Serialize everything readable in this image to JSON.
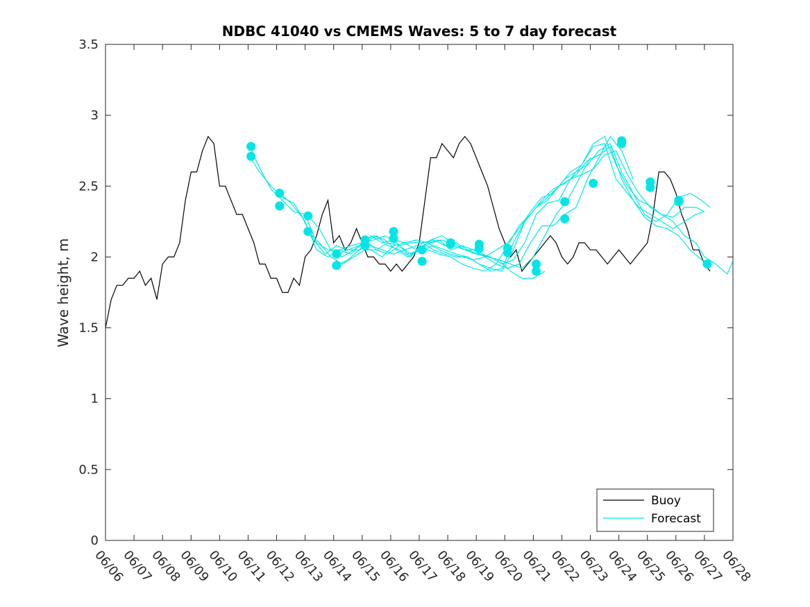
{
  "chart_data": {
    "type": "line",
    "title": "NDBC 41040 vs CMEMS Waves: 5 to 7 day forecast",
    "xlabel": "",
    "ylabel": "Wave height, m",
    "xlim": [
      "06/06",
      "06/28"
    ],
    "ylim": [
      0,
      3.5
    ],
    "x_ticks": [
      "06/06",
      "06/07",
      "06/08",
      "06/09",
      "06/10",
      "06/11",
      "06/12",
      "06/13",
      "06/14",
      "06/15",
      "06/16",
      "06/17",
      "06/18",
      "06/19",
      "06/20",
      "06/21",
      "06/22",
      "06/23",
      "06/24",
      "06/25",
      "06/26",
      "06/27",
      "06/28"
    ],
    "y_ticks": [
      "0",
      "0.5",
      "1",
      "1.5",
      "2",
      "2.5",
      "3",
      "3.5"
    ],
    "grid": false,
    "legend_position": "bottom-right",
    "colors": {
      "Buoy": "#000000",
      "Forecast": "#00e6e6"
    },
    "series": [
      {
        "name": "Buoy",
        "x_day": [
          0,
          0.1,
          0.2,
          0.4,
          0.6,
          0.8,
          1.0,
          1.2,
          1.4,
          1.6,
          1.8,
          2.0,
          2.2,
          2.4,
          2.6,
          2.8,
          3.0,
          3.2,
          3.4,
          3.6,
          3.8,
          4.0,
          4.2,
          4.4,
          4.6,
          4.8,
          5.0,
          5.2,
          5.4,
          5.6,
          5.8,
          6.0,
          6.2,
          6.4,
          6.6,
          6.8,
          7.0,
          7.2,
          7.4,
          7.6,
          7.8,
          8.0,
          8.2,
          8.4,
          8.6,
          8.8,
          9.0,
          9.2,
          9.4,
          9.6,
          9.8,
          10.0,
          10.2,
          10.4,
          10.6,
          10.8,
          11.0,
          11.2,
          11.4,
          11.6,
          11.8,
          12.0,
          12.2,
          12.4,
          12.6,
          12.8,
          13.0,
          13.2,
          13.4,
          13.6,
          13.8,
          14.0,
          14.2,
          14.4,
          14.6,
          14.8,
          15.0,
          15.2,
          15.4,
          15.6,
          15.8,
          16.0,
          16.2,
          16.4,
          16.6,
          16.8,
          17.0,
          17.2,
          17.4,
          17.6,
          17.8,
          18.0,
          18.2,
          18.4,
          18.6,
          18.8,
          19.0,
          19.2,
          19.4,
          19.6,
          19.8,
          20.0,
          20.2,
          20.4,
          20.6,
          20.8,
          21.0,
          21.2
        ],
        "values": [
          1.5,
          1.6,
          1.7,
          1.8,
          1.8,
          1.85,
          1.85,
          1.9,
          1.8,
          1.85,
          1.7,
          1.95,
          2.0,
          2.0,
          2.1,
          2.4,
          2.6,
          2.6,
          2.75,
          2.85,
          2.8,
          2.5,
          2.5,
          2.4,
          2.3,
          2.3,
          2.2,
          2.1,
          1.95,
          1.95,
          1.85,
          1.85,
          1.75,
          1.75,
          1.85,
          1.8,
          2.0,
          2.05,
          2.15,
          2.3,
          2.4,
          2.1,
          2.15,
          2.05,
          2.1,
          2.2,
          2.1,
          2.0,
          2.0,
          1.95,
          1.95,
          1.9,
          1.95,
          1.9,
          1.95,
          2.0,
          2.1,
          2.4,
          2.7,
          2.7,
          2.8,
          2.75,
          2.7,
          2.8,
          2.85,
          2.8,
          2.7,
          2.6,
          2.5,
          2.35,
          2.2,
          2.1,
          2.0,
          2.05,
          1.9,
          1.95,
          2.0,
          2.05,
          2.1,
          2.15,
          2.1,
          2.0,
          1.95,
          2.0,
          2.1,
          2.1,
          2.05,
          2.05,
          2.0,
          1.95,
          2.0,
          2.05,
          2.0,
          1.95,
          2.0,
          2.05,
          2.1,
          2.3,
          2.6,
          2.6,
          2.55,
          2.45,
          2.3,
          2.2,
          2.05,
          2.05,
          1.95,
          1.9
        ]
      },
      {
        "name": "Forecast",
        "runs": [
          {
            "x_day": [
              5.05,
              5.4,
              5.8,
              6.2,
              6.6,
              7.0,
              7.4,
              7.8,
              8.2,
              8.6,
              9.0,
              9.4,
              9.8,
              10.2,
              10.6,
              11.0,
              11.4,
              11.8,
              12.2,
              12.6,
              13.0,
              13.4,
              13.8,
              14.2,
              14.6,
              15.0,
              15.4
            ],
            "values": [
              2.78,
              2.63,
              2.48,
              2.4,
              2.32,
              2.3,
              2.1,
              2.05,
              2.05,
              2.02,
              2.1,
              2.15,
              2.12,
              2.05,
              2.0,
              2.05,
              2.1,
              2.12,
              2.08,
              2.05,
              2.05,
              2.0,
              1.98,
              1.9,
              1.85,
              1.85,
              1.9
            ]
          },
          {
            "x_day": [
              5.05,
              5.4,
              5.8,
              6.2,
              6.6,
              7.0,
              7.4,
              7.8,
              8.2,
              8.6,
              9.0,
              9.4,
              9.8,
              10.2,
              10.6,
              11.0,
              11.4,
              11.8,
              12.2,
              12.6,
              13.0,
              13.4,
              13.8,
              14.2,
              14.6,
              15.0,
              15.4,
              15.8,
              16.2,
              16.6,
              17.0
            ],
            "values": [
              2.71,
              2.6,
              2.5,
              2.42,
              2.38,
              2.25,
              2.05,
              2.0,
              2.05,
              2.08,
              2.1,
              2.12,
              2.15,
              2.1,
              2.02,
              2.05,
              2.12,
              2.15,
              2.1,
              2.05,
              2.02,
              2.0,
              1.98,
              1.95,
              1.92,
              2.0,
              2.15,
              2.3,
              2.4,
              2.55,
              2.7
            ]
          },
          {
            "x_day": [
              6.1,
              6.5,
              6.9,
              7.3,
              7.7,
              8.1,
              8.5,
              8.9,
              9.3,
              9.7,
              10.1,
              10.5,
              10.9,
              11.3,
              11.7,
              12.1,
              12.5,
              12.9,
              13.3,
              13.7,
              14.1,
              14.5,
              14.9,
              15.3,
              15.7,
              16.1,
              16.5,
              16.9,
              17.3,
              17.7,
              18.1,
              18.5
            ],
            "values": [
              2.45,
              2.38,
              2.28,
              2.12,
              2.02,
              2.08,
              2.05,
              2.05,
              2.15,
              2.1,
              2.12,
              2.1,
              2.05,
              2.1,
              2.12,
              2.05,
              2.08,
              2.05,
              2.0,
              1.95,
              1.92,
              1.95,
              2.1,
              2.22,
              2.22,
              2.3,
              2.35,
              2.55,
              2.7,
              2.85,
              2.75,
              2.55
            ]
          },
          {
            "x_day": [
              7.1,
              7.5,
              7.9,
              8.3,
              8.7,
              9.1,
              9.5,
              9.9,
              10.3,
              10.7,
              11.1,
              11.5,
              11.9,
              12.3,
              12.7,
              13.1,
              13.5,
              13.9,
              14.3,
              14.7,
              15.1,
              15.5,
              15.9,
              16.3,
              16.7,
              17.1,
              17.5,
              17.9,
              18.3,
              18.7,
              19.1,
              19.5,
              19.9,
              20.3,
              20.7,
              21.0
            ],
            "values": [
              2.29,
              2.2,
              2.05,
              2.0,
              2.05,
              2.1,
              2.15,
              2.08,
              2.05,
              2.0,
              2.1,
              2.12,
              2.08,
              2.1,
              2.05,
              2.02,
              2.0,
              1.95,
              1.98,
              2.1,
              2.3,
              2.38,
              2.4,
              2.55,
              2.65,
              2.8,
              2.85,
              2.65,
              2.5,
              2.4,
              2.36,
              2.3,
              2.28,
              2.35,
              2.35,
              2.32
            ]
          },
          {
            "x_day": [
              7.1,
              7.5,
              7.9,
              8.3,
              8.7,
              9.1,
              9.5,
              9.9,
              10.3,
              10.7,
              11.1,
              11.5,
              11.9,
              12.3,
              12.7,
              13.1,
              13.5,
              13.9,
              14.3,
              14.7,
              15.1,
              15.5,
              15.9,
              16.3,
              16.7,
              17.1,
              17.5,
              17.9,
              18.3,
              18.7,
              19.1,
              19.5,
              19.9,
              20.3,
              20.7,
              21.0
            ],
            "values": [
              2.18,
              2.1,
              2.0,
              1.95,
              2.0,
              2.05,
              2.05,
              2.1,
              2.08,
              2.02,
              2.05,
              2.08,
              2.05,
              2.02,
              2.0,
              1.95,
              1.92,
              1.9,
              2.05,
              2.25,
              2.35,
              2.4,
              2.5,
              2.6,
              2.65,
              2.78,
              2.8,
              2.55,
              2.45,
              2.35,
              2.3,
              2.25,
              2.2,
              2.25,
              2.3,
              2.32
            ]
          },
          {
            "x_day": [
              8.1,
              8.5,
              8.9,
              9.3,
              9.7,
              10.1,
              10.5,
              10.9,
              11.3,
              11.7,
              12.1,
              12.5,
              12.9,
              13.3,
              13.7,
              14.1,
              14.5,
              14.9,
              15.3,
              15.7,
              16.1,
              16.5,
              16.9,
              17.3,
              17.7,
              18.1,
              18.5,
              18.9,
              19.3,
              19.7,
              20.1,
              20.5,
              20.9,
              21.2
            ],
            "values": [
              2.02,
              2.05,
              2.08,
              2.05,
              2.0,
              2.08,
              2.1,
              2.12,
              2.1,
              2.05,
              2.02,
              2.0,
              1.98,
              2.0,
              2.05,
              2.1,
              2.2,
              2.32,
              2.42,
              2.45,
              2.55,
              2.6,
              2.65,
              2.75,
              2.8,
              2.6,
              2.45,
              2.3,
              2.25,
              2.3,
              2.42,
              2.45,
              2.4,
              2.35
            ]
          },
          {
            "x_day": [
              8.1,
              8.5,
              8.9,
              9.3,
              9.7,
              10.1,
              10.5,
              10.9,
              11.3,
              11.7,
              12.1,
              12.5,
              12.9,
              13.3,
              13.7,
              14.1,
              14.5,
              14.9,
              15.3,
              15.7,
              16.1,
              16.5,
              16.9,
              17.3,
              17.7,
              18.1,
              18.5,
              18.9,
              19.3,
              19.7,
              20.1,
              20.5,
              20.9,
              21.2
            ],
            "values": [
              1.94,
              1.98,
              2.05,
              2.08,
              2.05,
              2.02,
              2.05,
              2.08,
              2.05,
              2.02,
              2.0,
              1.95,
              1.92,
              1.9,
              1.95,
              2.08,
              2.22,
              2.3,
              2.4,
              2.48,
              2.52,
              2.58,
              2.68,
              2.72,
              2.78,
              2.55,
              2.4,
              2.28,
              2.22,
              2.2,
              2.15,
              2.05,
              1.98,
              1.95
            ]
          },
          {
            "x_day": [
              9.1,
              9.5,
              9.9,
              10.3,
              10.7,
              11.1,
              11.5,
              11.9,
              12.3,
              12.7,
              13.1,
              13.5,
              13.9,
              14.3,
              14.7,
              15.1,
              15.5,
              15.9,
              16.3,
              16.7,
              17.1,
              17.5,
              17.9,
              18.3,
              18.7,
              19.1,
              19.5,
              19.9,
              20.3,
              20.7,
              21.0,
              21.4,
              21.8,
              22.0
            ],
            "values": [
              2.12,
              2.05,
              2.02,
              2.08,
              2.1,
              2.1,
              2.05,
              2.02,
              2.0,
              2.0,
              1.95,
              1.9,
              1.92,
              2.1,
              2.25,
              2.35,
              2.42,
              2.5,
              2.55,
              2.58,
              2.62,
              2.72,
              2.75,
              2.58,
              2.45,
              2.35,
              2.3,
              2.25,
              2.15,
              2.1,
              2.0,
              1.95,
              1.88,
              1.97
            ]
          }
        ],
        "markers": [
          {
            "x_day": 5.1,
            "value": 2.78
          },
          {
            "x_day": 5.1,
            "value": 2.71
          },
          {
            "x_day": 6.1,
            "value": 2.45
          },
          {
            "x_day": 6.1,
            "value": 2.36
          },
          {
            "x_day": 7.1,
            "value": 2.29
          },
          {
            "x_day": 7.1,
            "value": 2.18
          },
          {
            "x_day": 8.1,
            "value": 2.02
          },
          {
            "x_day": 8.1,
            "value": 1.94
          },
          {
            "x_day": 9.1,
            "value": 2.12
          },
          {
            "x_day": 9.1,
            "value": 2.08
          },
          {
            "x_day": 10.1,
            "value": 2.18
          },
          {
            "x_day": 10.1,
            "value": 2.13
          },
          {
            "x_day": 11.1,
            "value": 2.05
          },
          {
            "x_day": 11.1,
            "value": 1.97
          },
          {
            "x_day": 12.1,
            "value": 2.1
          },
          {
            "x_day": 12.1,
            "value": 2.09
          },
          {
            "x_day": 13.1,
            "value": 2.09
          },
          {
            "x_day": 13.1,
            "value": 2.06
          },
          {
            "x_day": 14.1,
            "value": 2.06
          },
          {
            "x_day": 14.1,
            "value": 2.03
          },
          {
            "x_day": 15.1,
            "value": 1.95
          },
          {
            "x_day": 15.1,
            "value": 1.9
          },
          {
            "x_day": 16.1,
            "value": 2.39
          },
          {
            "x_day": 16.1,
            "value": 2.27
          },
          {
            "x_day": 17.1,
            "value": 2.52
          },
          {
            "x_day": 18.1,
            "value": 2.82
          },
          {
            "x_day": 18.1,
            "value": 2.8
          },
          {
            "x_day": 19.1,
            "value": 2.53
          },
          {
            "x_day": 19.1,
            "value": 2.49
          },
          {
            "x_day": 20.1,
            "value": 2.4
          },
          {
            "x_day": 20.1,
            "value": 2.39
          },
          {
            "x_day": 21.1,
            "value": 1.95
          }
        ]
      }
    ]
  }
}
